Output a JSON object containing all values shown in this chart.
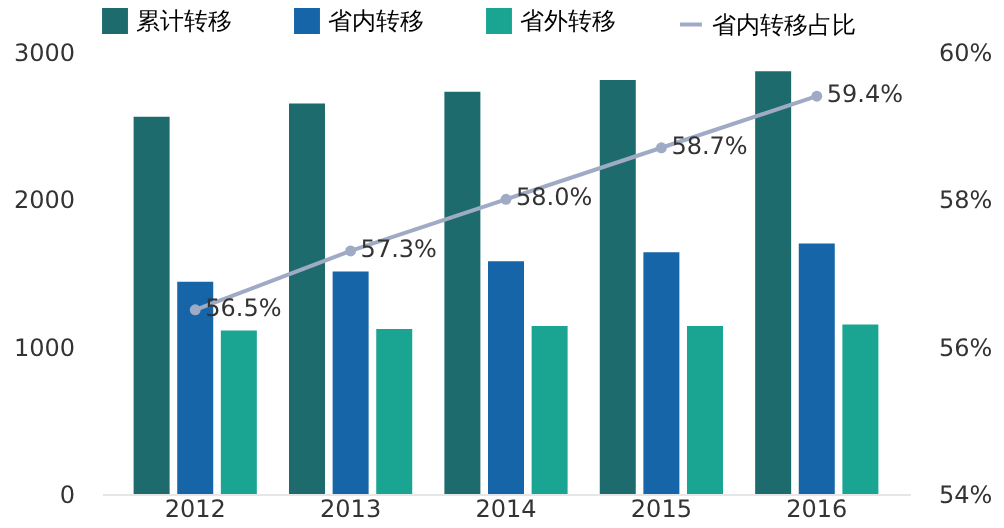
{
  "chart_data": {
    "type": "bar",
    "categories": [
      "2012",
      "2013",
      "2014",
      "2015",
      "2016"
    ],
    "series": [
      {
        "name": "累计转移",
        "color": "#1e6b6e",
        "values": [
          2560,
          2650,
          2730,
          2810,
          2870
        ]
      },
      {
        "name": "省内转移",
        "color": "#1565a8",
        "values": [
          1440,
          1510,
          1580,
          1640,
          1700
        ]
      },
      {
        "name": "省外转移",
        "color": "#1aa593",
        "values": [
          1110,
          1120,
          1140,
          1140,
          1150
        ]
      },
      {
        "name": "省内转移占比",
        "type": "line",
        "axis": "y2",
        "color": "#9fabc4",
        "marker": "circle",
        "values": [
          56.5,
          57.3,
          58.0,
          58.7,
          59.4
        ],
        "value_labels": [
          "56.5%",
          "57.3%",
          "58.0%",
          "58.7%",
          "59.4%"
        ]
      }
    ],
    "ylim": [
      0,
      3000
    ],
    "yticks": [
      0,
      1000,
      2000,
      3000
    ],
    "y2lim": [
      54,
      60
    ],
    "y2ticks": [
      {
        "value": 54,
        "label": "54%"
      },
      {
        "value": 56,
        "label": "56%"
      },
      {
        "value": 58,
        "label": "58%"
      },
      {
        "value": 60,
        "label": "60%"
      }
    ],
    "grid": false,
    "legend": "top"
  }
}
